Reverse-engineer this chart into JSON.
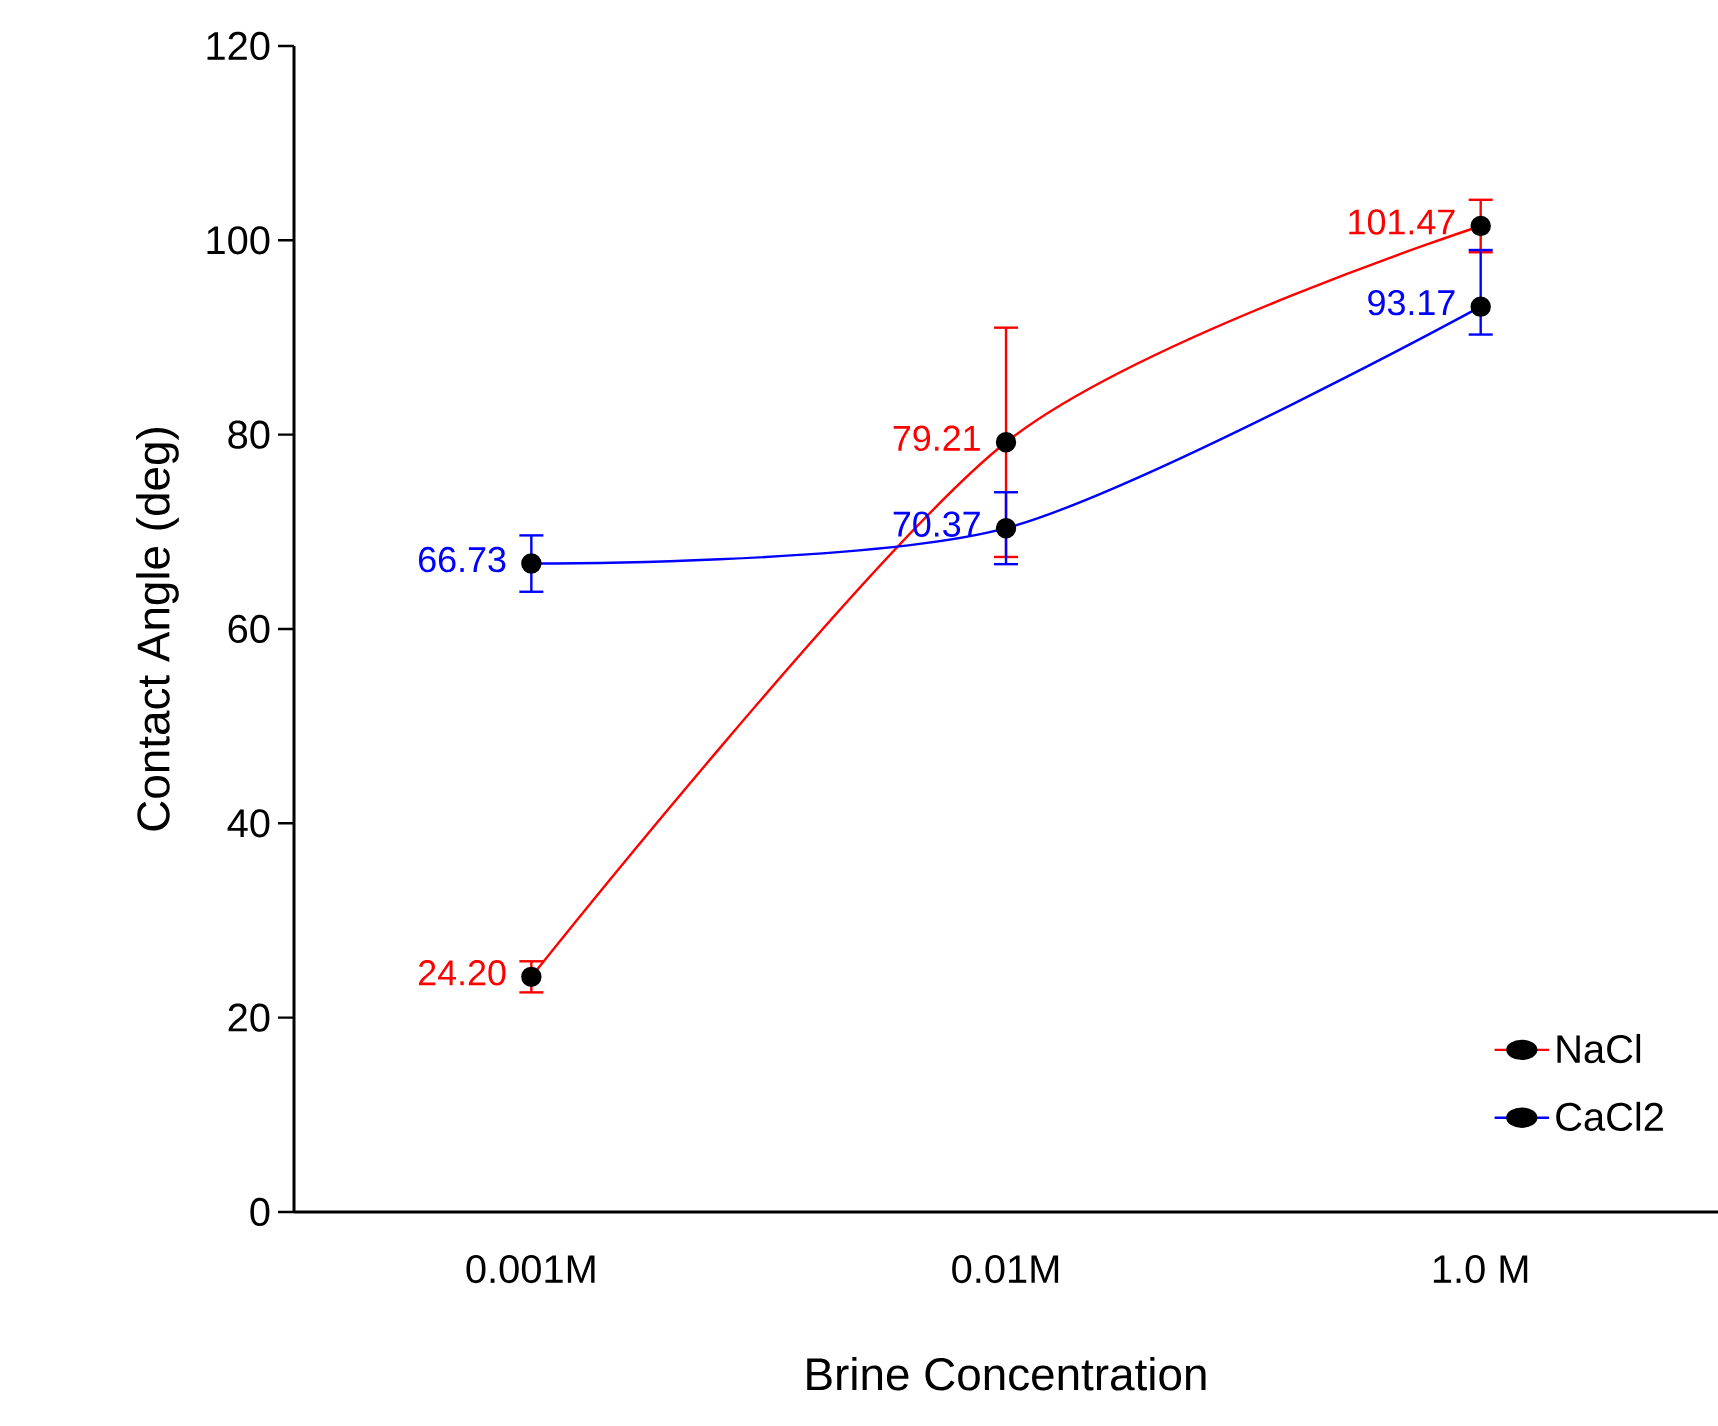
{
  "chart_data": {
    "type": "line",
    "xlabel": "Brine Concentration",
    "ylabel": "Contact Angle (deg)",
    "categories": [
      "0.001M",
      "0.01M",
      "1.0 M"
    ],
    "series": [
      {
        "name": "NaCl",
        "color": "#ff0000",
        "values": [
          24.2,
          79.21,
          101.47
        ],
        "value_labels": [
          "24.20",
          "79.21",
          "101.47"
        ],
        "errors": [
          1.6,
          11.8,
          2.7
        ]
      },
      {
        "name": "CaCl2",
        "color": "#0000ff",
        "values": [
          66.73,
          70.37,
          93.17
        ],
        "value_labels": [
          "66.73",
          "70.37",
          "93.17"
        ],
        "errors": [
          2.9,
          3.7,
          [
            90.3,
            99.0
          ]
        ]
      }
    ],
    "ylim": [
      0,
      120
    ],
    "yticks": [
      0,
      20,
      40,
      60,
      80,
      100,
      120
    ],
    "marker": "circle",
    "legend": "bottom right",
    "grid": false
  }
}
